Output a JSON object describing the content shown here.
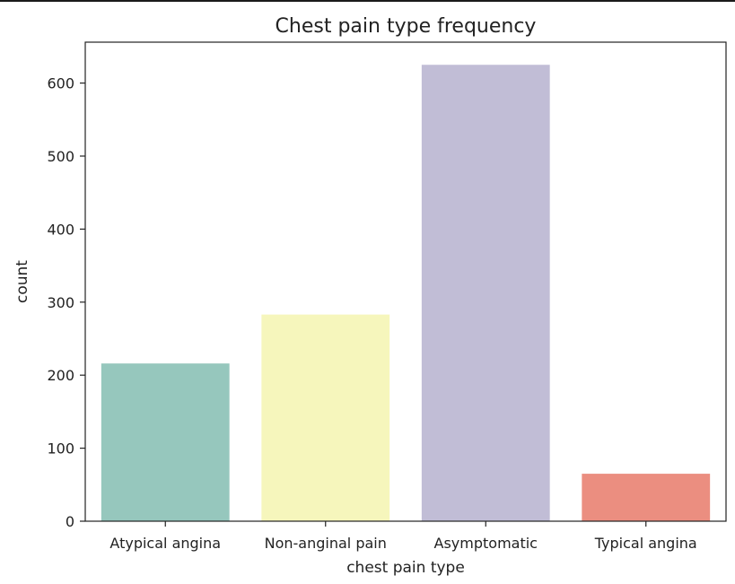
{
  "chart_data": {
    "type": "bar",
    "title": "Chest pain type frequency",
    "xlabel": "chest pain type",
    "ylabel": "count",
    "categories": [
      "Atypical angina",
      "Non-anginal pain",
      "Asymptomatic",
      "Typical angina"
    ],
    "values": [
      216,
      283,
      625,
      65
    ],
    "colors": [
      "#96c7bd",
      "#f6f6bc",
      "#c1bdd6",
      "#eb8e80"
    ],
    "ylim": [
      0,
      656
    ],
    "yticks": [
      0,
      100,
      200,
      300,
      400,
      500,
      600
    ],
    "grid": false,
    "legend": "none"
  }
}
